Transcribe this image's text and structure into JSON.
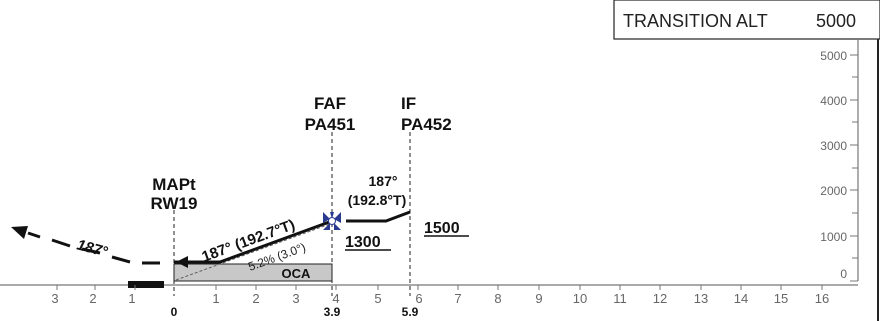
{
  "transition_alt": {
    "label": "TRANSITION ALT",
    "value": "5000"
  },
  "altitude_scale": [
    "0",
    "1000",
    "2000",
    "3000",
    "4000",
    "5000"
  ],
  "distance_scale": {
    "left": [
      "3",
      "2",
      "1"
    ],
    "right": [
      "1",
      "2",
      "3",
      "4",
      "5",
      "6",
      "7",
      "8",
      "9",
      "10",
      "11",
      "12",
      "13",
      "14",
      "15",
      "16"
    ]
  },
  "distance_markers": [
    "0",
    "3.9",
    "5.9"
  ],
  "fixes": {
    "mapt": {
      "name": "MAPt",
      "id": "RW19"
    },
    "faf": {
      "name": "FAF",
      "id": "PA451"
    },
    "if": {
      "name": "IF",
      "id": "PA452"
    }
  },
  "segments": {
    "final_track": "187° (192.7°T)",
    "gradient": "5.2% (3.0°)",
    "if_track_mag": "187°",
    "if_track_true": "(192.8°T)",
    "missed_track": "187°"
  },
  "altitudes": {
    "faf": "1300",
    "if": "1500"
  },
  "oca_label": "OCA",
  "colors": {
    "profile": "#111111",
    "oca_fill": "#c8c8c8",
    "scale_grey": "#777777",
    "faf_symbol": "#2a3b8f"
  },
  "icons": {
    "faf": "faf-fix-symbol-icon",
    "missed": "missed-approach-arrow-icon"
  }
}
